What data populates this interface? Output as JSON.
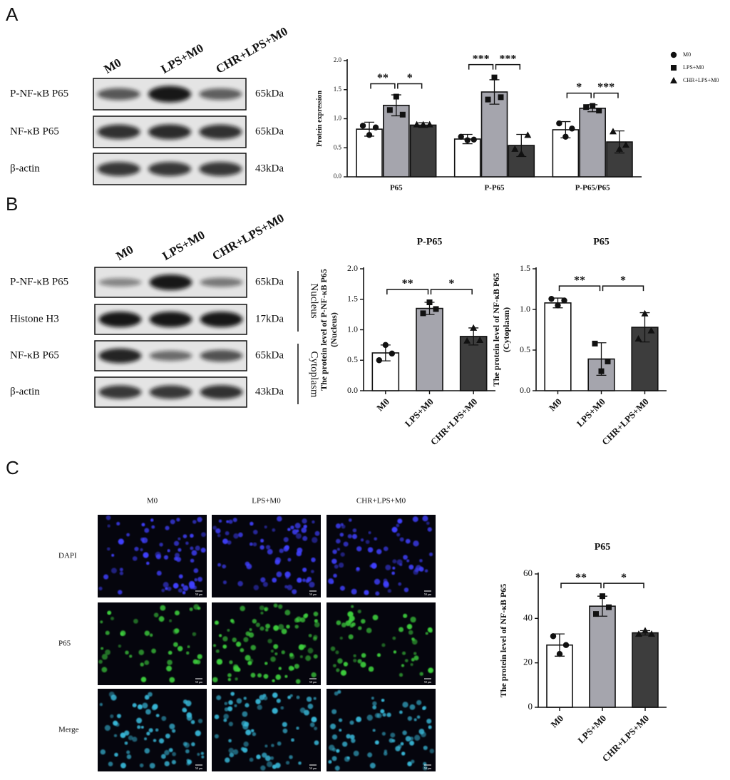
{
  "panel_a": {
    "label": "A",
    "lanes": [
      "M0",
      "LPS+M0",
      "CHR+LPS+M0"
    ],
    "rows": [
      {
        "protein": "P-NF-κB P65",
        "size": "65kDa"
      },
      {
        "protein": "NF-κB P65",
        "size": "65kDa"
      },
      {
        "protein": "β-actin",
        "size": "43kDa"
      }
    ]
  },
  "panel_b": {
    "label": "B",
    "lanes": [
      "M0",
      "LPS+M0",
      "CHR+LPS+M0"
    ],
    "rows": [
      {
        "protein": "P-NF-κB P65",
        "size": "65kDa"
      },
      {
        "protein": "Histone H3",
        "size": "17kDa"
      },
      {
        "protein": "NF-κB P65",
        "size": "65kDa"
      },
      {
        "protein": "β-actin",
        "size": "43kDa"
      }
    ],
    "compartments": [
      "Nucleus",
      "Cytoplasm"
    ]
  },
  "panel_c": {
    "label": "C",
    "columns": [
      "M0",
      "LPS+M0",
      "CHR+LPS+M0"
    ],
    "rows": [
      "DAPI",
      "P65",
      "Merge"
    ],
    "scale_bar": "50 μm"
  },
  "chart_data": [
    {
      "type": "bar",
      "y_label": [
        "Protein expression"
      ],
      "categories": [
        "P65",
        "P-P65",
        "P-P65/P65"
      ],
      "series": [
        {
          "name": "M0",
          "color": "#ffffff",
          "marker": "circle",
          "values": [
            0.82,
            0.65,
            0.81
          ],
          "errors": [
            0.12,
            0.08,
            0.14
          ],
          "points": [
            [
              0.88,
              0.72,
              0.85
            ],
            [
              0.69,
              0.63,
              0.64
            ],
            [
              0.92,
              0.69,
              0.83
            ]
          ]
        },
        {
          "name": "LPS+M0",
          "color": "#a5a5ad",
          "marker": "square",
          "values": [
            1.23,
            1.46,
            1.18
          ],
          "errors": [
            0.18,
            0.21,
            0.06
          ],
          "points": [
            [
              1.15,
              1.38,
              1.07
            ],
            [
              1.33,
              1.71,
              1.37
            ],
            [
              1.2,
              1.22,
              1.14
            ]
          ]
        },
        {
          "name": "CHR+LPS+M0",
          "color": "#3d3d3d",
          "marker": "triangle",
          "values": [
            0.89,
            0.54,
            0.6
          ],
          "errors": [
            0.04,
            0.19,
            0.19
          ],
          "points": [
            [
              0.9,
              0.9,
              0.9
            ],
            [
              0.48,
              0.4,
              0.72
            ],
            [
              0.78,
              0.48,
              0.55
            ]
          ]
        }
      ],
      "annotations": [
        [
          "**",
          "*"
        ],
        [
          "***",
          "***"
        ],
        [
          "*",
          "***"
        ]
      ],
      "ylim": [
        0,
        2
      ],
      "yticks": [
        {
          "value": 0,
          "label": "0.0"
        },
        0.5,
        {
          "value": 1,
          "label": "1.0"
        },
        1.5,
        {
          "value": 2,
          "label": "2.0"
        }
      ],
      "legend": "right"
    },
    {
      "type": "bar",
      "title": "P-P65",
      "y_label": [
        "The protein level of P-NF-κB P65",
        "(Nucleus)"
      ],
      "categories": [
        "M0",
        "LPS+M0",
        "CHR+LPS+M0"
      ],
      "colors": [
        "#ffffff",
        "#a5a5ad",
        "#3d3d3d"
      ],
      "markers": [
        "circle",
        "square",
        "triangle"
      ],
      "values": [
        0.62,
        1.35,
        0.89
      ],
      "errors": [
        0.13,
        0.1,
        0.14
      ],
      "points": [
        [
          0.5,
          0.75,
          0.61
        ],
        [
          1.27,
          1.45,
          1.34
        ],
        [
          0.82,
          1.03,
          0.83
        ]
      ],
      "annotations": [
        "**",
        "*"
      ],
      "ylim": [
        0,
        2
      ],
      "yticks": [
        {
          "value": 0,
          "label": "0.0"
        },
        0.5,
        {
          "value": 1,
          "label": "1.0"
        },
        1.5,
        {
          "value": 2,
          "label": "2.0"
        }
      ]
    },
    {
      "type": "bar",
      "title": "P65",
      "y_label": [
        "The protein level of NF-κB P65",
        "(Cytoplasm)"
      ],
      "categories": [
        "M0",
        "LPS+M0",
        "CHR+LPS+M0"
      ],
      "colors": [
        "#ffffff",
        "#a5a5ad",
        "#3d3d3d"
      ],
      "markers": [
        "circle",
        "square",
        "triangle"
      ],
      "values": [
        1.08,
        0.39,
        0.78
      ],
      "errors": [
        0.06,
        0.2,
        0.18
      ],
      "points": [
        [
          1.13,
          1.05,
          1.11
        ],
        [
          0.58,
          0.24,
          0.36
        ],
        [
          0.64,
          0.95,
          0.74
        ]
      ],
      "annotations": [
        "**",
        "*"
      ],
      "ylim": [
        0,
        1.5
      ],
      "yticks": [
        {
          "value": 0,
          "label": "0.0"
        },
        0.5,
        {
          "value": 1,
          "label": "1.0"
        },
        1.5
      ]
    },
    {
      "type": "bar",
      "title": "P65",
      "y_label": [
        "The protein level of NF-κB P65"
      ],
      "categories": [
        "M0",
        "LPS+M0",
        "CHR+LPS+M0"
      ],
      "colors": [
        "#ffffff",
        "#a5a5ad",
        "#3d3d3d"
      ],
      "markers": [
        "circle",
        "square",
        "triangle"
      ],
      "values": [
        28,
        45.5,
        33.5
      ],
      "errors": [
        5,
        4.5,
        1
      ],
      "points": [
        [
          32,
          24,
          28
        ],
        [
          42,
          50,
          45
        ],
        [
          33,
          34.5,
          33
        ]
      ],
      "annotations": [
        "**",
        "*"
      ],
      "ylim": [
        0,
        60
      ],
      "yticks": [
        0,
        20,
        40,
        60
      ]
    }
  ]
}
